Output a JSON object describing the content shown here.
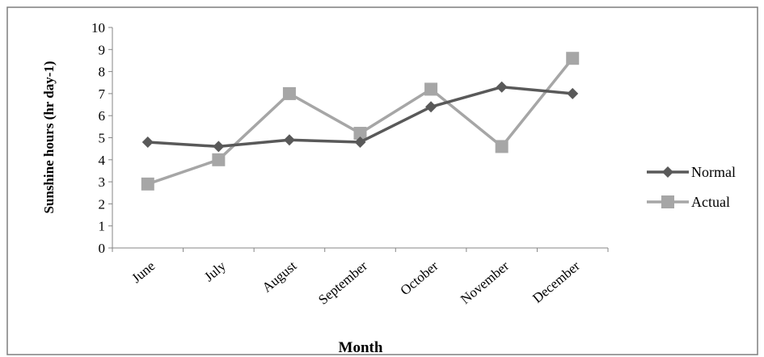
{
  "chart_data": {
    "type": "line",
    "categories": [
      "June",
      "July",
      "August",
      "September",
      "October",
      "November",
      "December"
    ],
    "series": [
      {
        "name": "Normal",
        "values": [
          4.8,
          4.6,
          4.9,
          4.8,
          6.4,
          7.3,
          7.0
        ],
        "color": "#595959",
        "marker": "diamond"
      },
      {
        "name": "Actual",
        "values": [
          2.9,
          4.0,
          7.0,
          5.2,
          7.2,
          4.6,
          8.6
        ],
        "color": "#A6A6A6",
        "marker": "square"
      }
    ],
    "title": "",
    "xlabel": "Month",
    "ylabel": "Sunshine hours (hr day-1)",
    "ylim": [
      0,
      10
    ],
    "yticks": [
      "0",
      "1",
      "2",
      "3",
      "4",
      "5",
      "6",
      "7",
      "8",
      "9",
      "10"
    ],
    "grid": false,
    "legend": "right"
  }
}
